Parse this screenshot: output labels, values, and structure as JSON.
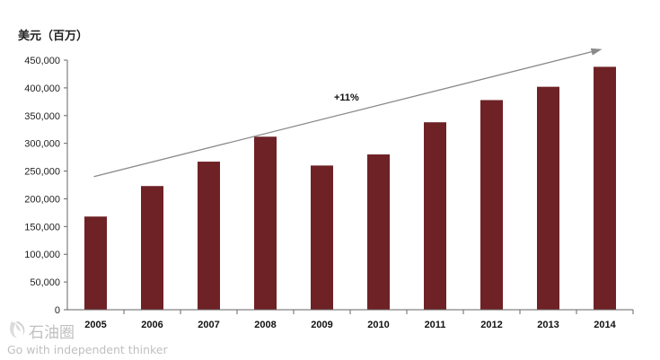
{
  "chart_data": {
    "type": "bar",
    "ylabel": "美元（百万）",
    "categories": [
      "2005",
      "2006",
      "2007",
      "2008",
      "2009",
      "2010",
      "2011",
      "2012",
      "2013",
      "2014"
    ],
    "values": [
      168000,
      223000,
      267000,
      312000,
      260000,
      280000,
      338000,
      378000,
      402000,
      438000
    ],
    "ylim": [
      0,
      450000
    ],
    "yticks": [
      0,
      50000,
      100000,
      150000,
      200000,
      250000,
      300000,
      350000,
      400000,
      450000
    ],
    "ytick_labels": [
      "0",
      "50,000",
      "100,000",
      "150,000",
      "200,000",
      "250,000",
      "300,000",
      "350,000",
      "400,000",
      "450,000"
    ],
    "annotation": "+11%",
    "grid": false,
    "bar_color": "#6e2226",
    "trend_color": "#8a8a8a",
    "trend_line": {
      "from": [
        "2005",
        240000
      ],
      "to": [
        "2014",
        469000
      ]
    }
  },
  "watermark": {
    "name": "石油圈",
    "slogan": "Go with independent thinker"
  }
}
